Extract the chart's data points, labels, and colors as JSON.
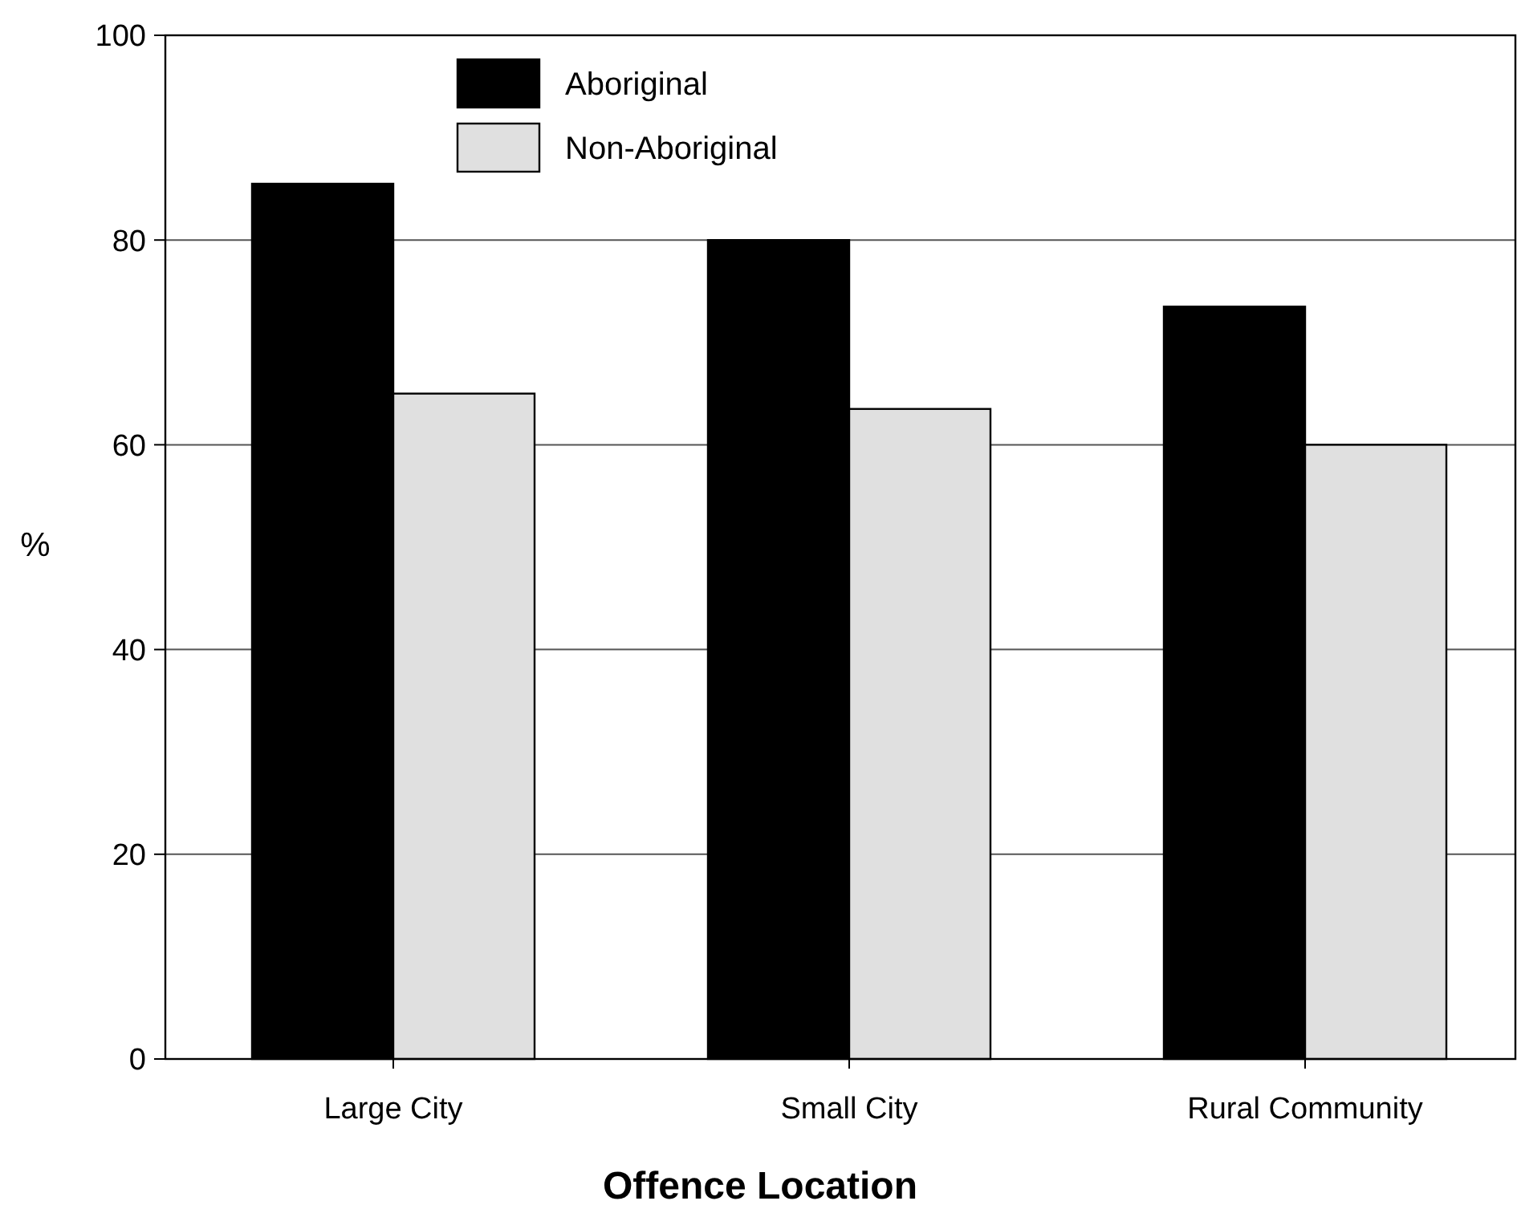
{
  "chart_data": {
    "type": "bar",
    "xlabel": "Offence Location",
    "ylabel": "%",
    "categories": [
      "Large City",
      "Small City",
      "Rural Community"
    ],
    "series": [
      {
        "name": "Aboriginal",
        "color": "#000000",
        "values": [
          85.5,
          80,
          73.5
        ]
      },
      {
        "name": "Non-Aboriginal",
        "color": "#e0e0e0",
        "values": [
          65,
          63.5,
          60
        ]
      }
    ],
    "ylim": [
      0,
      100
    ],
    "yticks": [
      0,
      20,
      40,
      60,
      80,
      100
    ],
    "grid": "y",
    "legend": "top left"
  }
}
